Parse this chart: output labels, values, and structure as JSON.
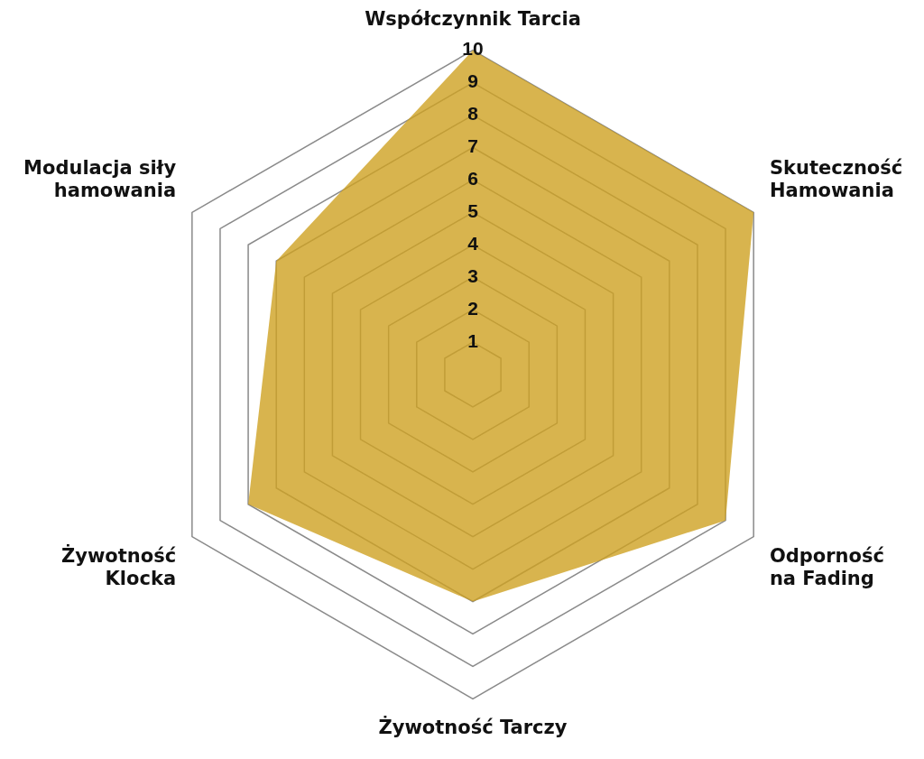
{
  "chart_data": {
    "type": "radar",
    "categories": [
      "Współczynnik Tarcia",
      "Skuteczność Hamowania",
      "Odporność na Fading",
      "Żywotność Tarczy",
      "Żywotność Klocka",
      "Modulacja siły hamowania"
    ],
    "series": [
      {
        "color": "#d8b44e",
        "values": [
          10,
          10,
          9,
          7,
          8,
          7
        ]
      }
    ],
    "ylim": [
      0,
      10
    ],
    "yticks": [
      1,
      2,
      3,
      4,
      5,
      6,
      7,
      8,
      9,
      10
    ],
    "grid": true,
    "legend": false,
    "marker": "none"
  }
}
